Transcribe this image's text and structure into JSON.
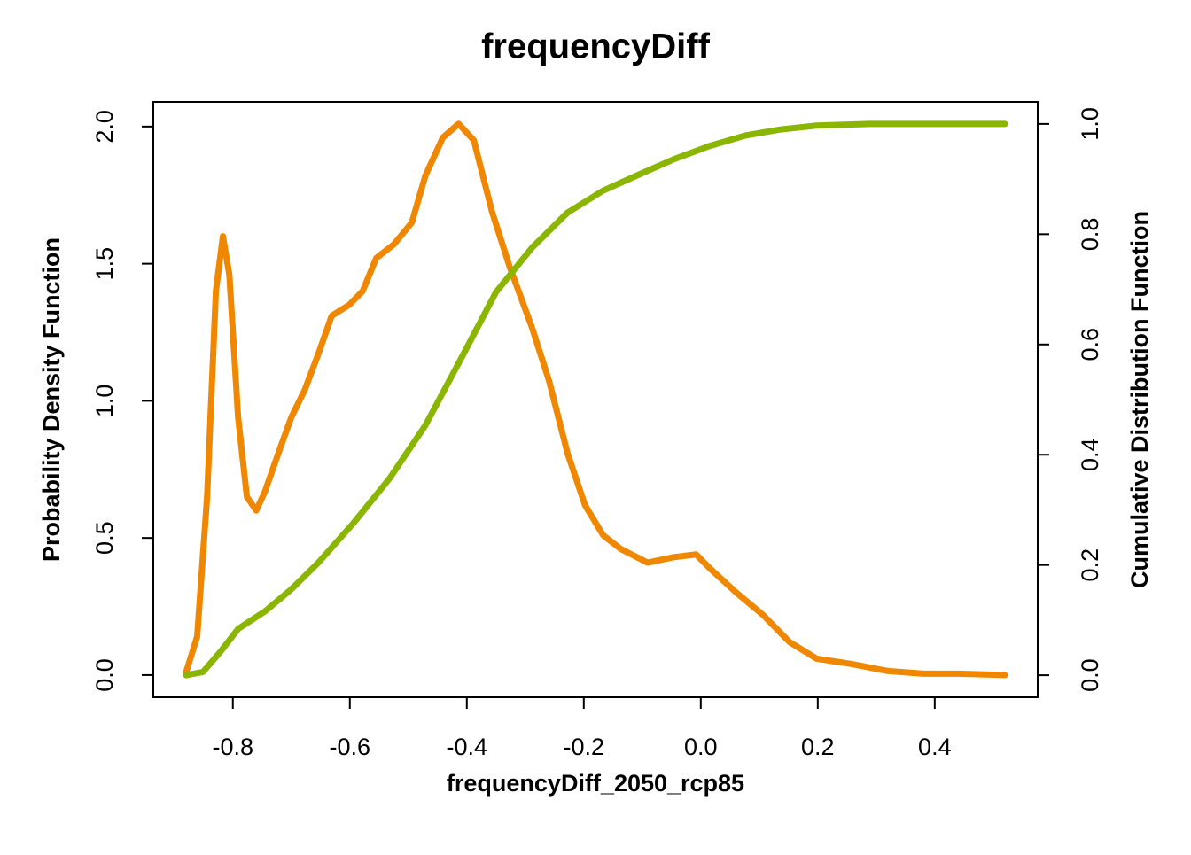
{
  "chart_data": {
    "type": "line",
    "title": "frequencyDiff",
    "x_label": "frequencyDiff_2050_rcp85",
    "y_label": "Probability Density Function",
    "y2_label": "Cumulative Distribution Function",
    "xlim": [
      -0.936,
      0.576
    ],
    "xticks": [
      -0.8,
      -0.6,
      -0.4,
      -0.2,
      {
        "value": 0,
        "label": "0.0"
      },
      0.2,
      0.4
    ],
    "ylim": [
      -0.081,
      2.09
    ],
    "yticks": [
      {
        "value": 0,
        "label": "0.0"
      },
      0.5,
      {
        "value": 1,
        "label": "1.0"
      },
      1.5,
      {
        "value": 2,
        "label": "2.0"
      }
    ],
    "y2lim": [
      -0.04,
      1.04
    ],
    "y2ticks": [
      {
        "value": 0,
        "label": "0.0"
      },
      0.2,
      0.4,
      0.6,
      0.8,
      {
        "value": 1,
        "label": "1.0"
      }
    ],
    "series": [
      {
        "name": "Probability Density Function",
        "color": "#f08700",
        "x": [
          -0.88,
          -0.861,
          -0.844,
          -0.829,
          -0.817,
          -0.806,
          -0.791,
          -0.776,
          -0.76,
          -0.745,
          -0.722,
          -0.7,
          -0.677,
          -0.654,
          -0.631,
          -0.601,
          -0.578,
          -0.555,
          -0.525,
          -0.494,
          -0.471,
          -0.441,
          -0.414,
          -0.388,
          -0.357,
          -0.327,
          -0.289,
          -0.259,
          -0.228,
          -0.198,
          -0.167,
          -0.137,
          -0.091,
          -0.046,
          -0.008,
          0.015,
          0.061,
          0.106,
          0.152,
          0.198,
          0.259,
          0.319,
          0.38,
          0.441,
          0.52
        ],
        "values": [
          0.01,
          0.14,
          0.65,
          1.4,
          1.6,
          1.46,
          0.94,
          0.65,
          0.6,
          0.67,
          0.81,
          0.94,
          1.04,
          1.17,
          1.31,
          1.35,
          1.4,
          1.52,
          1.57,
          1.65,
          1.82,
          1.96,
          2.01,
          1.95,
          1.69,
          1.49,
          1.27,
          1.07,
          0.81,
          0.62,
          0.51,
          0.46,
          0.41,
          0.43,
          0.44,
          0.39,
          0.3,
          0.22,
          0.12,
          0.06,
          0.04,
          0.015,
          0.005,
          0.005,
          0.0
        ]
      },
      {
        "name": "Cumulative Distribution Function",
        "color": "#8ab500",
        "axis": "y2",
        "x": [
          -0.88,
          -0.851,
          -0.821,
          -0.791,
          -0.745,
          -0.7,
          -0.654,
          -0.593,
          -0.532,
          -0.471,
          -0.41,
          -0.35,
          -0.289,
          -0.228,
          -0.167,
          -0.106,
          -0.046,
          0.015,
          0.076,
          0.137,
          0.198,
          0.289,
          0.52
        ],
        "values": [
          0.0,
          0.006,
          0.043,
          0.084,
          0.116,
          0.156,
          0.204,
          0.277,
          0.357,
          0.453,
          0.574,
          0.695,
          0.775,
          0.839,
          0.879,
          0.908,
          0.936,
          0.96,
          0.979,
          0.99,
          0.997,
          1.0,
          1.0
        ]
      }
    ]
  }
}
